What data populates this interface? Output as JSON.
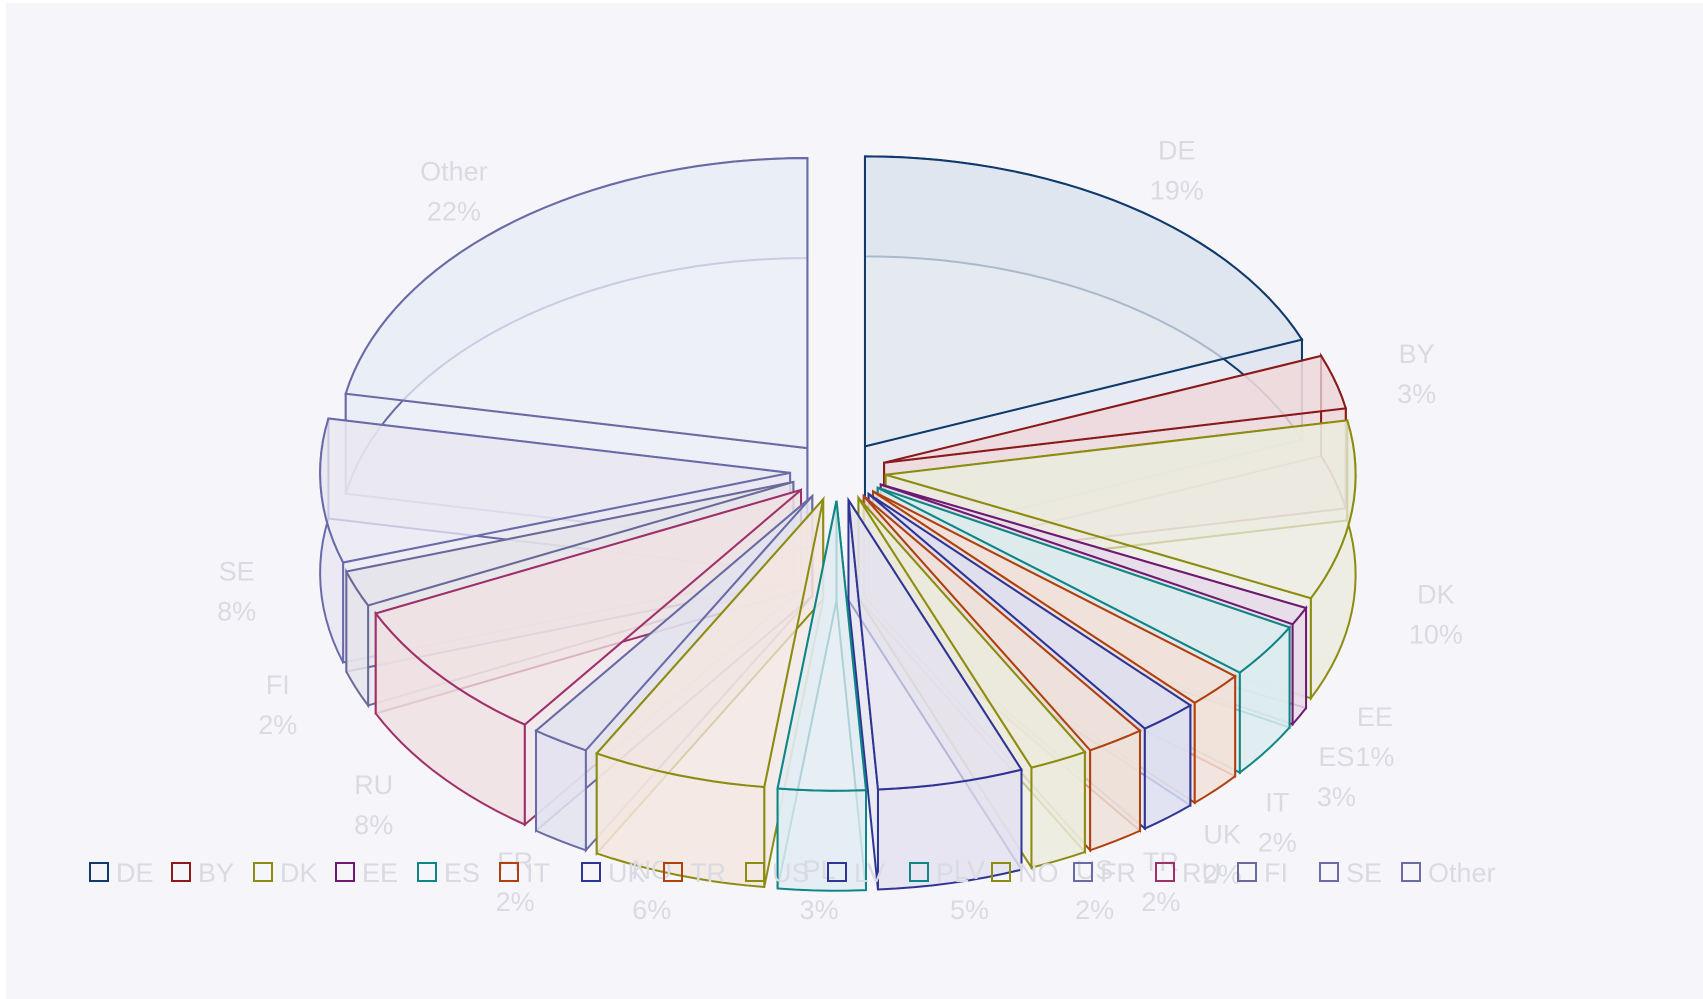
{
  "chart_data": {
    "type": "pie",
    "style": "exploded-3d",
    "legend_position": "bottom",
    "slices": [
      {
        "label": "DE",
        "value": 19,
        "value_label": "19%",
        "color": "#0e3b6b",
        "fill": "#dfe5ee"
      },
      {
        "label": "BY",
        "value": 3,
        "value_label": "3%",
        "color": "#8b1a1a",
        "fill": "#eed9dc"
      },
      {
        "label": "DK",
        "value": 10,
        "value_label": "10%",
        "color": "#8c8c10",
        "fill": "#ebebdf"
      },
      {
        "label": "EE",
        "value": 1,
        "value_label": "1%",
        "color": "#6f1a72",
        "fill": "#e7dce9"
      },
      {
        "label": "ES",
        "value": 3,
        "value_label": "3%",
        "color": "#108585",
        "fill": "#dcecee"
      },
      {
        "label": "IT",
        "value": 2,
        "value_label": "2%",
        "color": "#b0410e",
        "fill": "#f1e0d8"
      },
      {
        "label": "UK",
        "value": 2,
        "value_label": "2%",
        "color": "#2e3595",
        "fill": "#dddff0"
      },
      {
        "label": "TR",
        "value": 2,
        "value_label": "2%",
        "color": "#b0410e",
        "fill": "#efe0d8"
      },
      {
        "label": "US",
        "value": 2,
        "value_label": "2%",
        "color": "#8c8c10",
        "fill": "#ebebdc"
      },
      {
        "label": "LV",
        "value": 5,
        "value_label": "5%",
        "color": "#2e3595",
        "fill": "#e4e2ee"
      },
      {
        "label": "PL",
        "value": 3,
        "value_label": "3%",
        "color": "#108585",
        "fill": "#e1ecf2"
      },
      {
        "label": "NO",
        "value": 6,
        "value_label": "6%",
        "color": "#8c8c10",
        "fill": "#f3e6e0"
      },
      {
        "label": "FR",
        "value": 2,
        "value_label": "2%",
        "color": "#6a6aa6",
        "fill": "#e3e3ee"
      },
      {
        "label": "RU",
        "value": 8,
        "value_label": "8%",
        "color": "#a0306a",
        "fill": "#efe1e3"
      },
      {
        "label": "FI",
        "value": 2,
        "value_label": "2%",
        "color": "#6a6a9a",
        "fill": "#e4e4ea"
      },
      {
        "label": "SE",
        "value": 8,
        "value_label": "8%",
        "color": "#6a6aaa",
        "fill": "#e9e8f2"
      },
      {
        "label": "Other",
        "value": 22,
        "value_label": "22%",
        "color": "#6a6aa6",
        "fill": "#e9edf6"
      }
    ]
  }
}
